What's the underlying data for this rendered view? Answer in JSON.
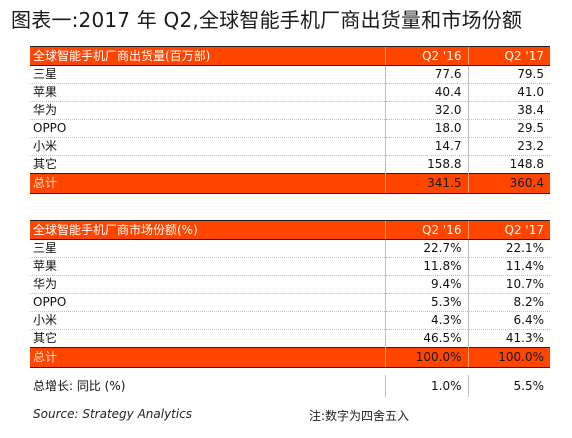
{
  "title": "图表一:2017 年 Q2,全球智能手机厂商出货量和市场份额",
  "chart_data": [
    {
      "type": "table",
      "title": "全球智能手机厂商出货量(百万部)",
      "columns": [
        "Q2 '16",
        "Q2 '17"
      ],
      "rows": [
        {
          "label": "三星",
          "values": [
            "77.6",
            "79.5"
          ]
        },
        {
          "label": "苹果",
          "values": [
            "40.4",
            "41.0"
          ]
        },
        {
          "label": "华为",
          "values": [
            "32.0",
            "38.4"
          ]
        },
        {
          "label": "OPPO",
          "values": [
            "18.0",
            "29.5"
          ]
        },
        {
          "label": "小米",
          "values": [
            "14.7",
            "23.2"
          ]
        },
        {
          "label": "其它",
          "values": [
            "158.8",
            "148.8"
          ]
        }
      ],
      "total": {
        "label": "总计",
        "values": [
          "341.5",
          "360.4"
        ]
      }
    },
    {
      "type": "table",
      "title": "全球智能手机厂商市场份额(%)",
      "columns": [
        "Q2 '16",
        "Q2 '17"
      ],
      "rows": [
        {
          "label": "三星",
          "values": [
            "22.7%",
            "22.1%"
          ]
        },
        {
          "label": "苹果",
          "values": [
            "11.8%",
            "11.4%"
          ]
        },
        {
          "label": "华为",
          "values": [
            "9.4%",
            "10.7%"
          ]
        },
        {
          "label": "OPPO",
          "values": [
            "5.3%",
            "8.2%"
          ]
        },
        {
          "label": "小米",
          "values": [
            "4.3%",
            "6.4%"
          ]
        },
        {
          "label": "其它",
          "values": [
            "46.5%",
            "41.3%"
          ]
        }
      ],
      "total": {
        "label": "总计",
        "values": [
          "100.0%",
          "100.0%"
        ]
      }
    }
  ],
  "growth": {
    "label": "总增长: 同比 (%)",
    "values": [
      "1.0%",
      "5.5%"
    ]
  },
  "source": "Source: Strategy Analytics",
  "note": "注:数字为四舍五入",
  "colors": {
    "accent": "#ff4500"
  }
}
